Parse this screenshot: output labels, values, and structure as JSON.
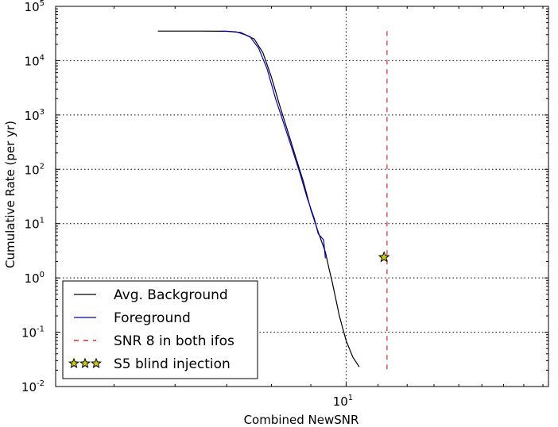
{
  "chart_data": {
    "type": "line",
    "xlabel": "Combined NewSNR",
    "ylabel": "Cumulative Rate (per yr)",
    "xscale": "log",
    "yscale": "log",
    "xlim": [
      4.2,
      18.3
    ],
    "ylim": [
      0.01,
      100000
    ],
    "grid": true,
    "legend_position": "lower-left",
    "x_ticks": [
      {
        "value": 10,
        "base": "10",
        "exp": "1"
      }
    ],
    "y_ticks": [
      {
        "value": 100000,
        "base": "10",
        "exp": "5"
      },
      {
        "value": 10000,
        "base": "10",
        "exp": "4"
      },
      {
        "value": 1000,
        "base": "10",
        "exp": "3"
      },
      {
        "value": 100,
        "base": "10",
        "exp": "2"
      },
      {
        "value": 10,
        "base": "10",
        "exp": "1"
      },
      {
        "value": 1,
        "base": "10",
        "exp": "0"
      },
      {
        "value": 0.1,
        "base": "10",
        "exp": "-1"
      },
      {
        "value": 0.01,
        "base": "10",
        "exp": "-2"
      }
    ],
    "series": [
      {
        "name": "Avg. Background",
        "color": "#000000",
        "style": "solid",
        "points": [
          [
            5.7,
            35000
          ],
          [
            6.0,
            35000
          ],
          [
            6.5,
            35000
          ],
          [
            7.0,
            34800
          ],
          [
            7.3,
            33000
          ],
          [
            7.6,
            25000
          ],
          [
            7.8,
            14000
          ],
          [
            8.0,
            5000
          ],
          [
            8.2,
            1500
          ],
          [
            8.4,
            500
          ],
          [
            8.6,
            170
          ],
          [
            8.8,
            60
          ],
          [
            9.0,
            18
          ],
          [
            9.2,
            7
          ],
          [
            9.4,
            3
          ],
          [
            9.5,
            1.5
          ],
          [
            9.6,
            0.8
          ],
          [
            9.7,
            0.4
          ],
          [
            9.8,
            0.2
          ],
          [
            10.0,
            0.07
          ],
          [
            10.2,
            0.035
          ],
          [
            10.4,
            0.023
          ]
        ]
      },
      {
        "name": "Foreground",
        "color": "#0000cc",
        "style": "solid",
        "points": [
          [
            6.9,
            35000
          ],
          [
            7.2,
            34000
          ],
          [
            7.5,
            28000
          ],
          [
            7.7,
            17000
          ],
          [
            7.9,
            7000
          ],
          [
            8.1,
            2000
          ],
          [
            8.3,
            700
          ],
          [
            8.5,
            250
          ],
          [
            8.7,
            90
          ],
          [
            8.9,
            30
          ],
          [
            9.1,
            12
          ],
          [
            9.2,
            6.5
          ],
          [
            9.35,
            5.0
          ],
          [
            9.4,
            2.3
          ]
        ]
      },
      {
        "name": "SNR 8 in both ifos",
        "color": "#cc0000",
        "style": "dashed",
        "points": [
          [
            11.3,
            35000
          ],
          [
            11.3,
            0.02
          ]
        ]
      },
      {
        "name": "S5 blind injection",
        "color": "#cccc00",
        "style": "marker-star",
        "points": [
          [
            11.2,
            2.4
          ]
        ]
      }
    ]
  }
}
